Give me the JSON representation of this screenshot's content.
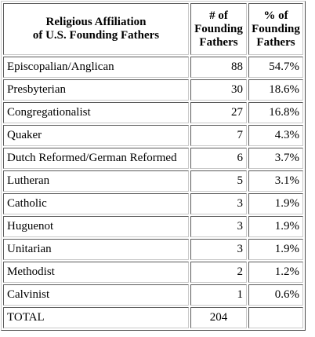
{
  "table": {
    "headers": {
      "affiliation": [
        "Religious Affiliation",
        "of U.S. Founding Fathers"
      ],
      "count": [
        "# of",
        "Founding",
        "Fathers"
      ],
      "percent": [
        "% of",
        "Founding",
        "Fathers"
      ]
    },
    "rows": [
      {
        "name": "Episcopalian/Anglican",
        "count": "88",
        "percent": "54.7%"
      },
      {
        "name": "Presbyterian",
        "count": "30",
        "percent": "18.6%"
      },
      {
        "name": "Congregationalist",
        "count": "27",
        "percent": "16.8%"
      },
      {
        "name": "Quaker",
        "count": "7",
        "percent": "4.3%"
      },
      {
        "name": "Dutch Reformed/German Reformed",
        "count": "6",
        "percent": "3.7%"
      },
      {
        "name": "Lutheran",
        "count": "5",
        "percent": "3.1%"
      },
      {
        "name": "Catholic",
        "count": "3",
        "percent": "1.9%"
      },
      {
        "name": "Huguenot",
        "count": "3",
        "percent": "1.9%"
      },
      {
        "name": "Unitarian",
        "count": "3",
        "percent": "1.9%"
      },
      {
        "name": "Methodist",
        "count": "2",
        "percent": "1.2%"
      },
      {
        "name": "Calvinist",
        "count": "1",
        "percent": "0.6%"
      }
    ],
    "total": {
      "name": "TOTAL",
      "count": "204",
      "percent": ""
    }
  }
}
